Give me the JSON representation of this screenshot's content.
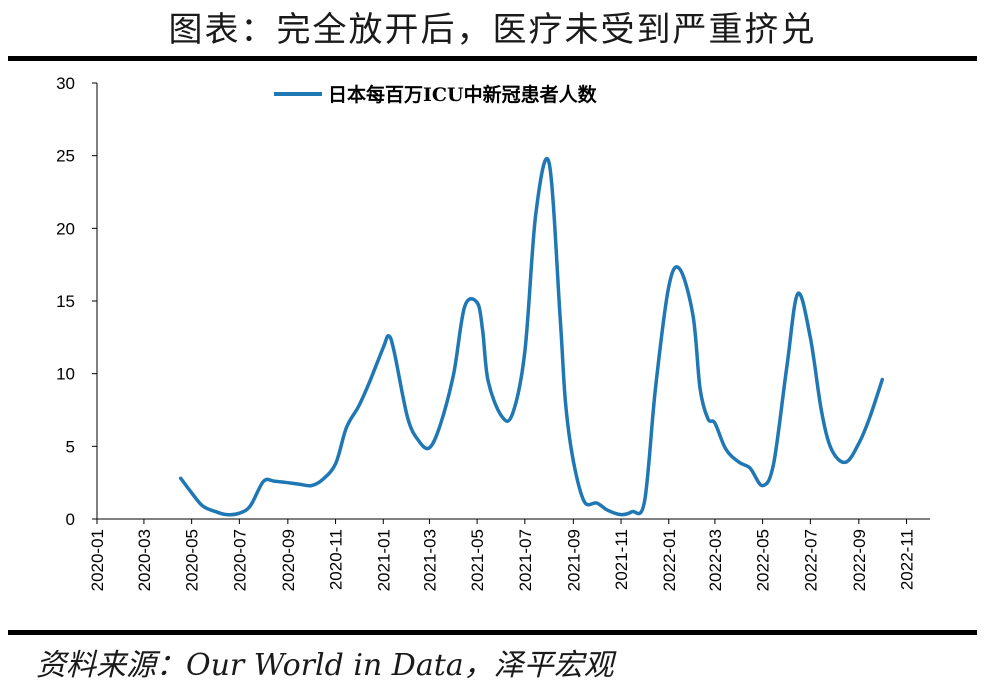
{
  "title": "图表：完全放开后，医疗未受到严重挤兑",
  "source": "资料来源：Our World in Data，泽平宏观",
  "colors": {
    "series": "#1f77b4",
    "axis": "#000000"
  },
  "chart_data": {
    "type": "line",
    "title": "",
    "xlabel": "",
    "ylabel": "",
    "ylim": [
      0,
      30
    ],
    "yticks": [
      "0",
      "5",
      "10",
      "15",
      "20",
      "25",
      "30"
    ],
    "xticks": [
      "2020-01",
      "2020-03",
      "2020-05",
      "2020-07",
      "2020-09",
      "2020-11",
      "2021-01",
      "2021-03",
      "2021-05",
      "2021-07",
      "2021-09",
      "2021-11",
      "2022-01",
      "2022-03",
      "2022-05",
      "2022-07",
      "2022-09",
      "2022-11"
    ],
    "grid": false,
    "legend": "top-center",
    "series": [
      {
        "name": "日本每百万ICU中新冠患者人数",
        "x": [
          "2020-04-17",
          "2020-05-01",
          "2020-05-15",
          "2020-06-01",
          "2020-06-15",
          "2020-07-01",
          "2020-07-15",
          "2020-08-01",
          "2020-08-15",
          "2020-09-01",
          "2020-09-15",
          "2020-10-01",
          "2020-10-15",
          "2020-11-01",
          "2020-11-15",
          "2020-12-01",
          "2020-12-15",
          "2021-01-01",
          "2021-01-08",
          "2021-01-15",
          "2021-02-01",
          "2021-02-15",
          "2021-03-01",
          "2021-03-15",
          "2021-04-01",
          "2021-04-15",
          "2021-05-01",
          "2021-05-08",
          "2021-05-15",
          "2021-06-01",
          "2021-06-15",
          "2021-07-01",
          "2021-07-15",
          "2021-08-01",
          "2021-08-15",
          "2021-08-22",
          "2021-09-01",
          "2021-09-15",
          "2021-10-01",
          "2021-10-15",
          "2021-11-01",
          "2021-11-15",
          "2021-12-01",
          "2021-12-15",
          "2022-01-01",
          "2022-01-15",
          "2022-02-01",
          "2022-02-10",
          "2022-02-20",
          "2022-03-01",
          "2022-03-15",
          "2022-04-01",
          "2022-04-15",
          "2022-05-01",
          "2022-05-15",
          "2022-06-01",
          "2022-06-15",
          "2022-07-01",
          "2022-07-15",
          "2022-07-28",
          "2022-08-15",
          "2022-09-01",
          "2022-09-15",
          "2022-10-01",
          "2022-10-15",
          "2022-11-01",
          "2022-11-15"
        ],
        "values": [
          2.8,
          1.8,
          0.9,
          0.5,
          0.3,
          0.4,
          0.9,
          2.6,
          2.6,
          2.5,
          2.4,
          2.3,
          2.7,
          3.8,
          6.3,
          7.8,
          9.5,
          11.8,
          12.6,
          11.5,
          7.0,
          5.4,
          4.9,
          6.5,
          10.0,
          14.6,
          14.9,
          13.0,
          9.5,
          7.1,
          7.2,
          11.5,
          21.0,
          24.5,
          14.0,
          8.0,
          4.0,
          1.2,
          1.1,
          0.6,
          0.3,
          0.5,
          1.2,
          9.0,
          16.0,
          17.2,
          14.0,
          9.0,
          6.9,
          6.6,
          4.8,
          3.9,
          3.5,
          2.3,
          3.8,
          10.5,
          15.5,
          12.5,
          7.5,
          4.8,
          3.9,
          5.2,
          7.0,
          9.6,
          null,
          null,
          null
        ]
      }
    ]
  }
}
